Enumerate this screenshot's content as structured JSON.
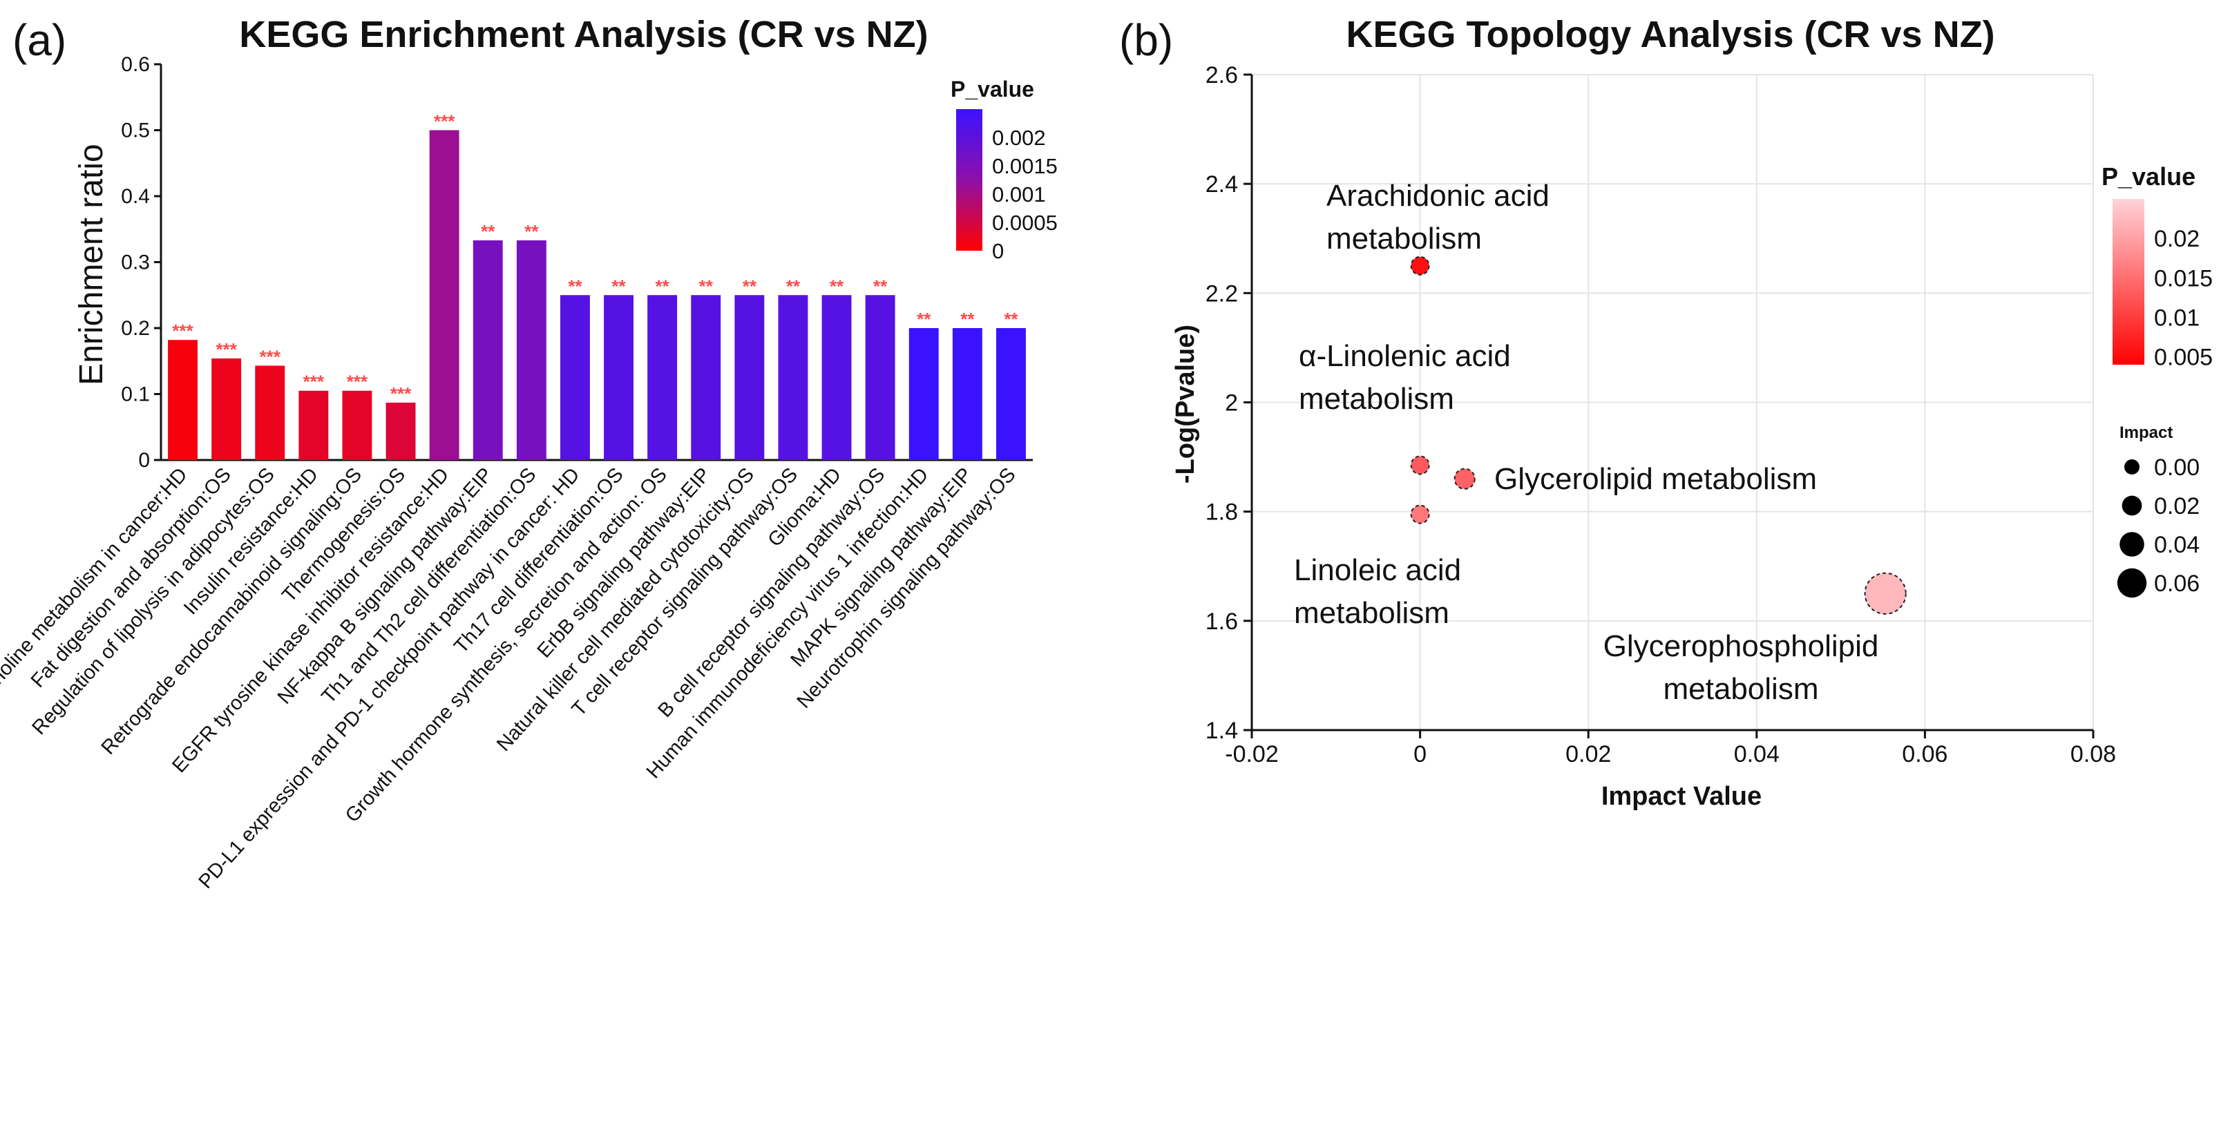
{
  "panels": {
    "a": {
      "letter": "(a)"
    },
    "b": {
      "letter": "(b)"
    }
  },
  "chart_data": [
    {
      "type": "bar",
      "title": "KEGG Enrichment Analysis (CR vs NZ)",
      "xlabel": "",
      "ylabel": "Enrichment  ratio",
      "ylim": [
        0,
        0.6
      ],
      "yticks": [
        "0",
        "0.1",
        "0.2",
        "0.3",
        "0.4",
        "0.5",
        "0.6"
      ],
      "categories": [
        "Choline metabolism in cancer:HD",
        "Fat digestion and absorption:OS",
        "Regulation of lipolysis in adipocytes:OS",
        "Insulin resistance:HD",
        "Retrograde endocannabinoid signaling:OS",
        "Thermogenesis:OS",
        "EGFR tyrosine kinase inhibitor resistance:HD",
        "NF-kappa B signaling pathway:EIP",
        "Th1 and Th2 cell differentiation:OS",
        "PD-L1 expression and PD-1 checkpoint pathway  in cancer: HD",
        "Th17 cell differentiation:OS",
        "Growth hormone synthesis,  secretion and action:  OS",
        "ErbB signaling pathway:EIP",
        "Natural killer cell mediated cytotoxicity:OS",
        "T cell receptor signaling pathway:OS",
        "Glioma:HD",
        "B cell receptor signaling pathway:OS",
        "Human immunodeficiency virus 1 infection:HD",
        "MAPK signaling pathway:EIP",
        "Neurotrophin signaling pathway:OS"
      ],
      "values": [
        0.182,
        0.154,
        0.143,
        0.105,
        0.105,
        0.087,
        0.5,
        0.333,
        0.333,
        0.25,
        0.25,
        0.25,
        0.25,
        0.25,
        0.25,
        0.25,
        0.25,
        0.2,
        0.2,
        0.2
      ],
      "p_values": [
        0.0001,
        0.0002,
        0.0002,
        0.0003,
        0.0003,
        0.0004,
        0.0011,
        0.0016,
        0.0016,
        0.0021,
        0.0021,
        0.0021,
        0.0021,
        0.0021,
        0.0021,
        0.0021,
        0.0021,
        0.0025,
        0.0025,
        0.0025
      ],
      "significance": [
        "***",
        "***",
        "***",
        "***",
        "***",
        "***",
        "***",
        "**",
        "**",
        "**",
        "**",
        "**",
        "**",
        "**",
        "**",
        "**",
        "**",
        "**",
        "**",
        "**"
      ],
      "color_legend": {
        "title": "P_value",
        "ticks": [
          "0.002",
          "0.0015",
          "0.001",
          "0.0005",
          "0"
        ],
        "range": [
          0,
          0.0025
        ],
        "low_color": "#ff0000",
        "mid_color": "#8e10a8",
        "high_color": "#3b12ff"
      },
      "star_color": "#ff4b4b",
      "grid": false
    },
    {
      "type": "scatter",
      "title": "KEGG Topology Analysis (CR vs NZ)",
      "xlabel": "Impact Value",
      "ylabel": "-Log(Pvalue)",
      "xlim": [
        -0.02,
        0.08
      ],
      "ylim": [
        1.4,
        2.6
      ],
      "xticks": [
        "-0.02",
        "0",
        "0.02",
        "0.04",
        "0.06",
        "0.08"
      ],
      "yticks": [
        "1.4",
        "1.6",
        "1.8",
        "2",
        "2.2",
        "2.4",
        "2.6"
      ],
      "grid": true,
      "points": [
        {
          "name": "Arachidonic acid metabolism",
          "x": 0,
          "y": 2.25,
          "impact": 0,
          "p": 0.0056,
          "label_lines": [
            "Arachidonic acid",
            "metabolism"
          ]
        },
        {
          "name": "α-Linolenic acid metabolism",
          "x": 0,
          "y": 1.885,
          "impact": 0,
          "p": 0.013,
          "label_lines": [
            "α-Linolenic acid",
            "metabolism"
          ]
        },
        {
          "name": "Glycerolipid metabolism",
          "x": 0.0053,
          "y": 1.86,
          "impact": 0.0053,
          "p": 0.0138,
          "label_lines": [
            "Glycerolipid metabolism"
          ]
        },
        {
          "name": "Linoleic acid metabolism",
          "x": 0,
          "y": 1.795,
          "impact": 0,
          "p": 0.016,
          "label_lines": [
            "Linoleic acid",
            "metabolism"
          ]
        },
        {
          "name": "Glycerophospholipid metabolism",
          "x": 0.0553,
          "y": 1.65,
          "impact": 0.0553,
          "p": 0.0224,
          "label_lines": [
            "Glycerophospholipid",
            "metabolism"
          ]
        }
      ],
      "color_legend": {
        "title": "P_value",
        "ticks": [
          "0.02",
          "0.015",
          "0.01",
          "0.005"
        ],
        "range": [
          0.004,
          0.025
        ],
        "low_color": "#ff0000",
        "high_color": "#ffd3d8"
      },
      "size_legend": {
        "title": "Impact",
        "values": [
          0.0,
          0.02,
          0.04,
          0.06
        ],
        "labels": [
          "0.00",
          "0.02",
          "0.04",
          "0.06"
        ]
      }
    }
  ]
}
